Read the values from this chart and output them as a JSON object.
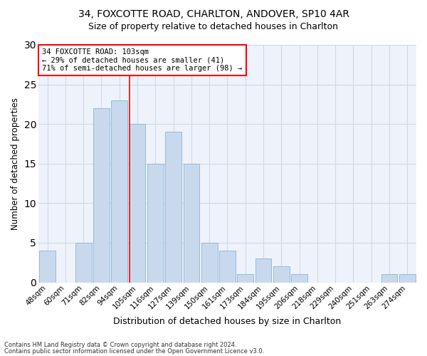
{
  "title1": "34, FOXCOTTE ROAD, CHARLTON, ANDOVER, SP10 4AR",
  "title2": "Size of property relative to detached houses in Charlton",
  "xlabel": "Distribution of detached houses by size in Charlton",
  "ylabel": "Number of detached properties",
  "categories": [
    "48sqm",
    "60sqm",
    "71sqm",
    "82sqm",
    "94sqm",
    "105sqm",
    "116sqm",
    "127sqm",
    "139sqm",
    "150sqm",
    "161sqm",
    "173sqm",
    "184sqm",
    "195sqm",
    "206sqm",
    "218sqm",
    "229sqm",
    "240sqm",
    "251sqm",
    "263sqm",
    "274sqm"
  ],
  "values": [
    4,
    0,
    5,
    22,
    23,
    20,
    15,
    19,
    15,
    5,
    4,
    1,
    3,
    2,
    1,
    0,
    0,
    0,
    0,
    1,
    1
  ],
  "bar_color": "#c9d9ed",
  "bar_edge_color": "#8ab4d4",
  "grid_color": "#d0d8e8",
  "bg_color": "#eef2fa",
  "annotation_line1": "34 FOXCOTTE ROAD: 103sqm",
  "annotation_line2": "← 29% of detached houses are smaller (41)",
  "annotation_line3": "71% of semi-detached houses are larger (98) →",
  "annotation_box_color": "white",
  "annotation_box_edge": "red",
  "footer1": "Contains HM Land Registry data © Crown copyright and database right 2024.",
  "footer2": "Contains public sector information licensed under the Open Government Licence v3.0.",
  "ylim": [
    0,
    30
  ],
  "yticks": [
    0,
    5,
    10,
    15,
    20,
    25,
    30
  ],
  "red_line_index": 4.55
}
